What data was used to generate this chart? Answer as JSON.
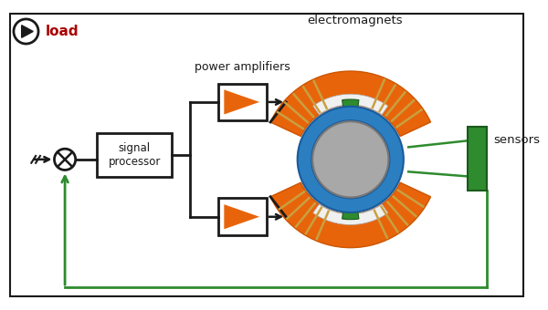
{
  "bg_color": "#ffffff",
  "colors": {
    "orange": "#E8640A",
    "blue": "#2B7FC1",
    "gray": "#A8A8A8",
    "green": "#2E8B2E",
    "black": "#1a1a1a",
    "white": "#FFFFFF",
    "red": "#AA0000",
    "dark_gray": "#555555",
    "coil": "#C8A040",
    "pole_white": "#F0F0F0"
  },
  "labels": {
    "load": "load",
    "power_amplifiers": "power amplifiers",
    "signal_processor": "signal\nprocessor",
    "electromagnets": "electromagnets",
    "sensors": "sensors"
  },
  "figsize": [
    6.0,
    3.4
  ],
  "dpi": 100,
  "xlim": [
    0,
    600
  ],
  "ylim": [
    0,
    340
  ]
}
